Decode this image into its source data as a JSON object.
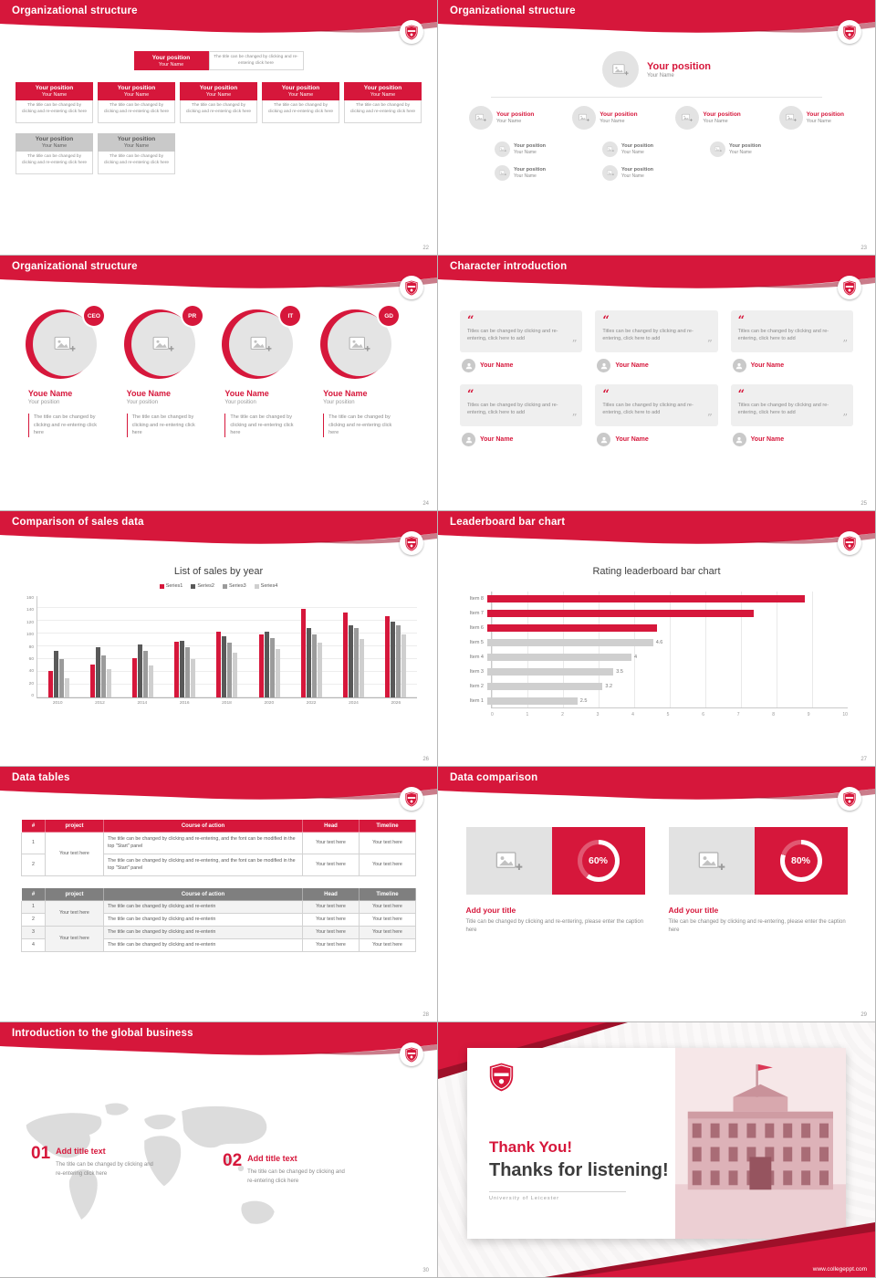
{
  "theme": {
    "accent": "#D6173B",
    "accent_dark": "#9E1029",
    "table_header_gray": "#7F7F7F",
    "placeholder_gray": "#E3E3E3",
    "text_gray": "#8A8A8A"
  },
  "slides": {
    "s22": {
      "title": "Organizational structure",
      "page": "22",
      "position": "Your position",
      "name": "Your Name",
      "caption": "The title can be changed by clicking and re-entering click here"
    },
    "s23": {
      "title": "Organizational structure",
      "page": "23",
      "position": "Your position",
      "name": "Your Name"
    },
    "s24": {
      "title": "Organizational structure",
      "page": "24",
      "badges": [
        "CEO",
        "PR",
        "IT",
        "GD"
      ],
      "name": "Youe Name",
      "position": "Your position",
      "caption": "The title can be changed by clicking and re-entering click here"
    },
    "s25": {
      "title": "Character introduction",
      "page": "25",
      "quote": "Titles can be changed by clicking and re-entering, click here to add",
      "name": "Your Name"
    },
    "s26": {
      "title": "Comparison of sales data",
      "page": "26"
    },
    "s27": {
      "title": "Leaderboard bar chart",
      "page": "27"
    },
    "s28": {
      "title": "Data tables",
      "page": "28",
      "columns": [
        "#",
        "project",
        "Course of action",
        "Head",
        "Timeline"
      ],
      "rows1": [
        "1",
        "2"
      ],
      "rows2": [
        "1",
        "2",
        "3",
        "4"
      ],
      "project_cell": "Your text here",
      "course_long": "The title can be changed by clicking and re-entering, and the font can be modified in the top \"Start\" panel",
      "course_short": "The title can be changed by clicking and re-enterin",
      "cell": "Your text here"
    },
    "s29": {
      "title": "Data comparison",
      "page": "29",
      "panels": [
        {
          "percent_label": "60%",
          "heading": "Add your title",
          "caption": "Title can be changed by clicking and re-entering, please enter the caption here"
        },
        {
          "percent_label": "80%",
          "heading": "Add your title",
          "caption": "Tille can be changed by clicking and re-entering, please enter the caption here"
        }
      ]
    },
    "s30": {
      "title": "Introduction to the global business",
      "page": "30",
      "items": [
        {
          "num": "01",
          "heading": "Add title text",
          "caption": "The title can be changed by clicking and re-entering click here"
        },
        {
          "num": "02",
          "heading": "Add title text",
          "caption": "The title can be changed by clicking and re-entering click here"
        }
      ]
    },
    "thanks": {
      "line1": "Thank You!",
      "line2": "Thanks for listening!",
      "sub": "University of Leicester",
      "url": "www.collegeppt.com"
    }
  },
  "chart_data": [
    {
      "slide": "26",
      "type": "bar",
      "title": "List of sales by year",
      "categories": [
        "2010",
        "2012",
        "2014",
        "2016",
        "2018",
        "2020",
        "2022",
        "2024",
        "2026"
      ],
      "series": [
        {
          "name": "Series1",
          "color": "#D6173B",
          "values": [
            42,
            52,
            62,
            88,
            104,
            100,
            140,
            134,
            128
          ]
        },
        {
          "name": "Series2",
          "color": "#595959",
          "values": [
            74,
            80,
            84,
            90,
            96,
            104,
            110,
            114,
            120
          ]
        },
        {
          "name": "Series3",
          "color": "#9B9B9B",
          "values": [
            60,
            66,
            74,
            80,
            86,
            94,
            100,
            110,
            114
          ]
        },
        {
          "name": "Series4",
          "color": "#CFCFCF",
          "values": [
            30,
            44,
            50,
            60,
            70,
            76,
            86,
            92,
            100
          ]
        }
      ],
      "ylim": [
        0,
        160
      ],
      "ytick_step": 20,
      "legend_position": "top",
      "grid": true
    },
    {
      "slide": "27",
      "type": "bar-horizontal",
      "title": "Rating leaderboard bar chart",
      "categories": [
        "Item 8",
        "Item 7",
        "Item 6",
        "Item 5",
        "Item 4",
        "Item 3",
        "Item 2",
        "Item 1"
      ],
      "values": [
        8.8,
        7.4,
        4.7,
        4.6,
        4,
        3.5,
        3.2,
        2.5
      ],
      "value_labels": [
        "",
        "",
        "",
        "4.6",
        "4",
        "3.5",
        "3.2",
        "2.5"
      ],
      "colors": [
        "#D6173B",
        "#D6173B",
        "#D6173B",
        "#CFCFCF",
        "#CFCFCF",
        "#CFCFCF",
        "#CFCFCF",
        "#CFCFCF"
      ],
      "xlim": [
        0,
        10
      ],
      "xticks": [
        "0",
        "1",
        "2",
        "3",
        "4",
        "5",
        "6",
        "7",
        "8",
        "9",
        "10"
      ],
      "grid": true
    },
    {
      "slide": "29",
      "type": "pie",
      "donuts": [
        {
          "label": "60%",
          "value": 60
        },
        {
          "label": "80%",
          "value": 80
        }
      ]
    }
  ]
}
